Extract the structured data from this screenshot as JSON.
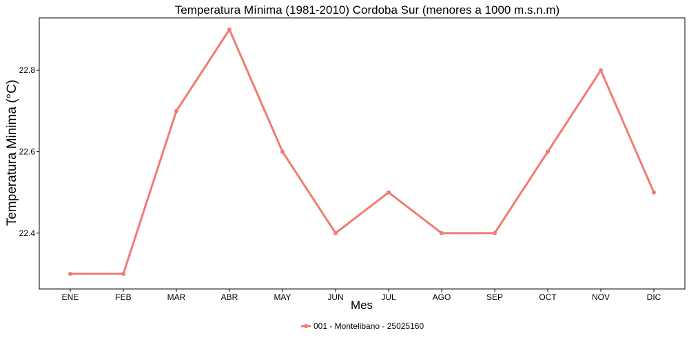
{
  "chart_data": {
    "type": "line",
    "title": "Temperatura Mínima (1981-2010) Cordoba Sur (menores a 1000 m.s.n.m)",
    "xlabel": "Mes",
    "ylabel": "Temperatura Minima (°C)",
    "categories": [
      "ENE",
      "FEB",
      "MAR",
      "ABR",
      "MAY",
      "JUN",
      "JUL",
      "AGO",
      "SEP",
      "OCT",
      "NOV",
      "DIC"
    ],
    "series": [
      {
        "name": "001 - Montelibano - 25025160",
        "values": [
          22.3,
          22.3,
          22.7,
          22.9,
          22.6,
          22.4,
          22.5,
          22.4,
          22.4,
          22.6,
          22.8,
          22.5
        ],
        "color": "#F07B72"
      }
    ],
    "ylim": [
      22.25,
      22.95
    ],
    "yticks": [
      22.4,
      22.6,
      22.8
    ],
    "ytick_labels": [
      "22.4",
      "22.6",
      "22.8"
    ],
    "grid": false,
    "legend_position": "bottom"
  }
}
